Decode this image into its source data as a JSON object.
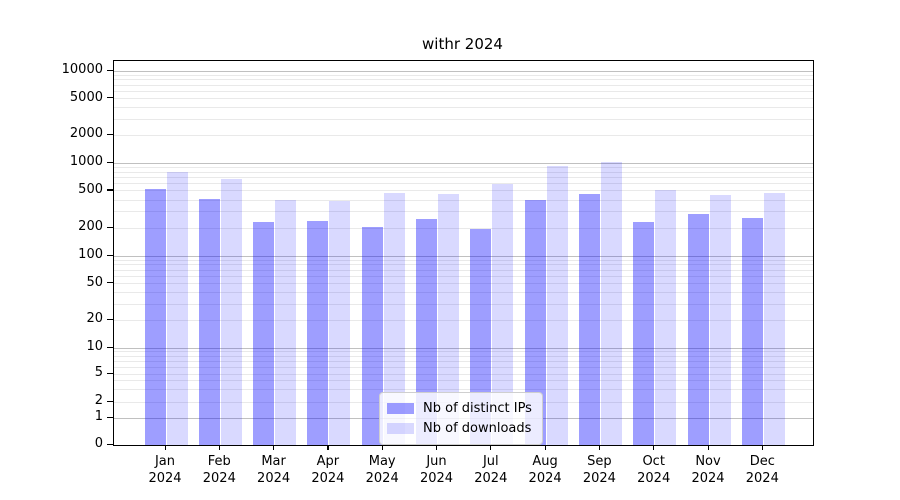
{
  "chart_data": {
    "type": "bar",
    "title": "withr 2024",
    "categories": [
      "Jan",
      "Feb",
      "Mar",
      "Apr",
      "May",
      "Jun",
      "Jul",
      "Aug",
      "Sep",
      "Oct",
      "Nov",
      "Dec"
    ],
    "x_tick_year": "2024",
    "series": [
      {
        "name": "Nb of distinct IPs",
        "color": "rgba(0,0,255,0.38)",
        "values": [
          520,
          415,
          230,
          240,
          205,
          250,
          195,
          400,
          460,
          230,
          280,
          256
        ]
      },
      {
        "name": "Nb of downloads",
        "color": "rgba(0,0,255,0.15)",
        "values": [
          800,
          680,
          400,
          395,
          480,
          460,
          595,
          930,
          1020,
          515,
          450,
          470
        ]
      }
    ],
    "yscale": "symlog",
    "ylim": [
      0,
      10000
    ],
    "y_tick_labels": [
      "10000",
      "5000",
      "2000",
      "1000",
      "500",
      "200",
      "100",
      "50",
      "20",
      "10",
      "5",
      "2",
      "1",
      "0"
    ],
    "grid": true,
    "legend_position": "lower-center-inside",
    "colors": {
      "major_grid": "#c0c0c0",
      "minor_grid": "#e9e9e9",
      "axis": "#000000",
      "bar_ips": "rgba(0,0,255,0.38)",
      "bar_downloads": "rgba(0,0,255,0.15)"
    }
  }
}
